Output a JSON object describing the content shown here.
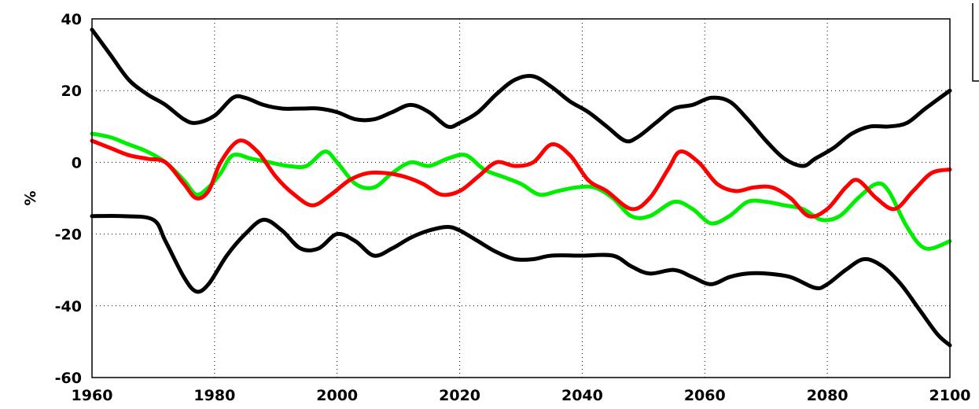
{
  "chart_data": {
    "type": "line",
    "title": "",
    "xlabel": "",
    "ylabel": "%",
    "xlim": [
      1960,
      2100
    ],
    "ylim": [
      -60,
      40
    ],
    "xticks": [
      "1960",
      "1980",
      "2000",
      "2020",
      "2040",
      "2060",
      "2080",
      "2100"
    ],
    "yticks": [
      "-60",
      "-40",
      "-20",
      "0",
      "20",
      "40"
    ],
    "grid": true,
    "legend": "top-right",
    "series": [
      {
        "color": "#000000",
        "x": [
          1960,
          1963,
          1966,
          1969,
          1972,
          1975,
          1977,
          1980,
          1983,
          1985,
          1988,
          1991,
          1994,
          1997,
          2000,
          2003,
          2006,
          2009,
          2012,
          2015,
          2018,
          2020,
          2023,
          2026,
          2029,
          2032,
          2035,
          2038,
          2041,
          2044,
          2047,
          2049,
          2052,
          2055,
          2058,
          2061,
          2064,
          2067,
          2070,
          2073,
          2076,
          2078,
          2081,
          2084,
          2087,
          2090,
          2093,
          2096,
          2100
        ],
        "y": [
          37,
          30,
          23,
          19,
          16,
          12,
          11,
          13,
          18,
          18,
          16,
          15,
          15,
          15,
          14,
          12,
          12,
          14,
          16,
          14,
          10,
          11,
          14,
          19,
          23,
          24,
          21,
          17,
          14,
          10,
          6,
          7,
          11,
          15,
          16,
          18,
          17,
          12,
          6,
          1,
          -1,
          1,
          4,
          8,
          10,
          10,
          11,
          15,
          20
        ]
      },
      {
        "color": "#000000",
        "x": [
          1960,
          1965,
          1970,
          1972,
          1975,
          1977,
          1979,
          1982,
          1985,
          1988,
          1991,
          1994,
          1997,
          2000,
          2003,
          2006,
          2009,
          2012,
          2015,
          2018,
          2020,
          2023,
          2026,
          2029,
          2032,
          2035,
          2040,
          2045,
          2048,
          2051,
          2055,
          2058,
          2061,
          2064,
          2067,
          2070,
          2074,
          2078,
          2080,
          2083,
          2086,
          2089,
          2092,
          2095,
          2098,
          2100
        ],
        "y": [
          -15,
          -15,
          -16,
          -22,
          -32,
          -36,
          -34,
          -26,
          -20,
          -16,
          -19,
          -24,
          -24,
          -20,
          -22,
          -26,
          -24,
          -21,
          -19,
          -18,
          -19,
          -22,
          -25,
          -27,
          -27,
          -26,
          -26,
          -26,
          -29,
          -31,
          -30,
          -32,
          -34,
          -32,
          -31,
          -31,
          -32,
          -35,
          -34,
          -30,
          -27,
          -29,
          -34,
          -41,
          -48,
          -51
        ]
      },
      {
        "color": "#00ee00",
        "x": [
          1960,
          1963,
          1966,
          1969,
          1972,
          1975,
          1977,
          1979,
          1981,
          1983,
          1986,
          1989,
          1992,
          1995,
          1998,
          2000,
          2003,
          2006,
          2009,
          2012,
          2015,
          2018,
          2021,
          2024,
          2027,
          2030,
          2033,
          2036,
          2039,
          2042,
          2045,
          2048,
          2051,
          2055,
          2058,
          2061,
          2064,
          2067,
          2070,
          2073,
          2076,
          2079,
          2082,
          2085,
          2088,
          2090,
          2093,
          2096,
          2100
        ],
        "y": [
          8,
          7,
          5,
          3,
          0,
          -5,
          -9,
          -7,
          -3,
          2,
          1,
          0,
          -1,
          -1,
          3,
          0,
          -6,
          -7,
          -3,
          0,
          -1,
          1,
          2,
          -2,
          -4,
          -6,
          -9,
          -8,
          -7,
          -7,
          -10,
          -15,
          -15,
          -11,
          -13,
          -17,
          -15,
          -11,
          -11,
          -12,
          -13,
          -16,
          -15,
          -10,
          -6,
          -8,
          -18,
          -24,
          -22
        ]
      },
      {
        "color": "#ff0000",
        "x": [
          1960,
          1963,
          1966,
          1969,
          1972,
          1975,
          1977,
          1979,
          1981,
          1984,
          1987,
          1990,
          1993,
          1996,
          1999,
          2002,
          2005,
          2008,
          2011,
          2014,
          2017,
          2020,
          2023,
          2026,
          2029,
          2032,
          2035,
          2038,
          2041,
          2044,
          2048,
          2051,
          2054,
          2056,
          2059,
          2062,
          2065,
          2068,
          2071,
          2074,
          2077,
          2080,
          2083,
          2085,
          2088,
          2091,
          2094,
          2097,
          2100
        ],
        "y": [
          6,
          4,
          2,
          1,
          0,
          -6,
          -10,
          -8,
          0,
          6,
          3,
          -4,
          -9,
          -12,
          -9,
          -5,
          -3,
          -3,
          -4,
          -6,
          -9,
          -8,
          -4,
          0,
          -1,
          0,
          5,
          2,
          -5,
          -8,
          -13,
          -10,
          -2,
          3,
          0,
          -6,
          -8,
          -7,
          -7,
          -10,
          -15,
          -13,
          -7,
          -5,
          -10,
          -13,
          -8,
          -3,
          -2
        ]
      }
    ]
  }
}
